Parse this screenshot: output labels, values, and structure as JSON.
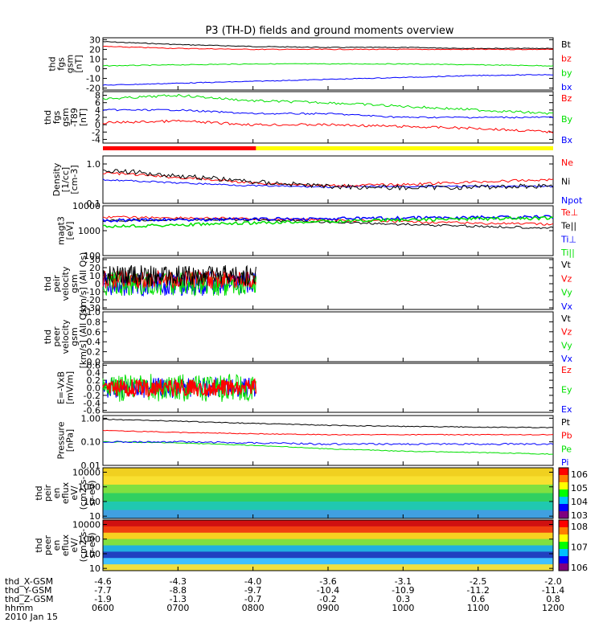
{
  "title": "P3 (TH-D) fields and ground moments overview",
  "colors": {
    "black": "#000000",
    "red": "#ff0000",
    "green": "#00e000",
    "blue": "#0000ff",
    "yellow": "#ffff00"
  },
  "panels": [
    {
      "id": "fgs",
      "ylabel": [
        "thd",
        "fgs",
        "gsm",
        "[nT]"
      ],
      "ticks": [
        "30",
        "20",
        "10",
        "0",
        "-10",
        "-20"
      ],
      "tickvals": [
        30,
        20,
        10,
        0,
        -10,
        -20
      ],
      "ylim": [
        -22,
        32
      ],
      "legend": [
        {
          "text": "Bt",
          "color": "#000000"
        },
        {
          "text": "bz",
          "color": "#ff0000"
        },
        {
          "text": "by",
          "color": "#00e000"
        },
        {
          "text": "bx",
          "color": "#0000ff"
        }
      ]
    },
    {
      "id": "t89",
      "ylabel": [
        "thd",
        "fgs",
        "gsm",
        "-T89",
        "[nT]"
      ],
      "ticks": [
        "8",
        "6",
        "4",
        "2",
        "0",
        "-2",
        "-4"
      ],
      "tickvals": [
        8,
        6,
        4,
        2,
        0,
        -2,
        -4
      ],
      "ylim": [
        -5,
        9
      ],
      "legend": [
        {
          "text": "Bz",
          "color": "#ff0000"
        },
        {
          "text": "By",
          "color": "#00e000"
        },
        {
          "text": "Bx",
          "color": "#0000ff"
        }
      ]
    },
    {
      "id": "density",
      "ylabel": [
        "Density",
        "[1/cc]",
        "[cm^-3]"
      ],
      "ticks": [
        "1.0",
        "0.1"
      ],
      "tickvals": [
        1.0,
        0.1
      ],
      "log": true,
      "ylim": [
        0.1,
        1.6
      ],
      "legend": [
        {
          "text": "Ne",
          "color": "#ff0000"
        },
        {
          "text": "Ni",
          "color": "#000000"
        },
        {
          "text": "Npot",
          "color": "#0000ff"
        }
      ]
    },
    {
      "id": "temp",
      "ylabel": [
        "magt3",
        "[eV]"
      ],
      "ticks": [
        "10000",
        "1000",
        "100"
      ],
      "tickvals": [
        10000,
        1000,
        100
      ],
      "log": true,
      "ylim": [
        100,
        10000
      ],
      "legend": [
        {
          "text": "Te⊥",
          "color": "#ff0000"
        },
        {
          "text": "Te||",
          "color": "#000000"
        },
        {
          "text": "Ti⊥",
          "color": "#0000ff"
        },
        {
          "text": "Ti||",
          "color": "#00e000"
        }
      ]
    },
    {
      "id": "peir",
      "ylabel": [
        "thd",
        "peir",
        "velocity",
        "gsm",
        "[km/s] (All Qs)"
      ],
      "ticks": [
        "30",
        "20",
        "10",
        "0",
        "-10",
        "-20",
        "-30"
      ],
      "tickvals": [
        30,
        20,
        10,
        0,
        -10,
        -20,
        -30
      ],
      "ylim": [
        -32,
        32
      ],
      "legend": [
        {
          "text": "Vt",
          "color": "#000000"
        },
        {
          "text": "Vz",
          "color": "#ff0000"
        },
        {
          "text": "Vy",
          "color": "#00e000"
        },
        {
          "text": "Vx",
          "color": "#0000ff"
        }
      ]
    },
    {
      "id": "peer",
      "ylabel": [
        "thd",
        "peer",
        "velocity",
        "gsm",
        "[km/s] (All Qs)"
      ],
      "ticks": [
        "1.0",
        "0.8",
        "0.6",
        "0.4",
        "0.2",
        "0.0"
      ],
      "tickvals": [
        1.0,
        0.8,
        0.6,
        0.4,
        0.2,
        0.0
      ],
      "ylim": [
        0,
        1
      ],
      "legend": [
        {
          "text": "Vt",
          "color": "#000000"
        },
        {
          "text": "Vz",
          "color": "#ff0000"
        },
        {
          "text": "Vy",
          "color": "#00e000"
        },
        {
          "text": "Vx",
          "color": "#0000ff"
        }
      ]
    },
    {
      "id": "exb",
      "ylabel": [
        "E=-VxB",
        "[mV/m]"
      ],
      "ticks": [
        "0.6",
        "0.4",
        "0.2",
        "0.0",
        "-0.2",
        "-0.4",
        "-0.6"
      ],
      "tickvals": [
        0.6,
        0.4,
        0.2,
        0.0,
        -0.2,
        -0.4,
        -0.6
      ],
      "ylim": [
        -0.65,
        0.65
      ],
      "legend": [
        {
          "text": "Ez",
          "color": "#ff0000"
        },
        {
          "text": "Ey",
          "color": "#00e000"
        },
        {
          "text": "Ex",
          "color": "#0000ff"
        }
      ]
    },
    {
      "id": "pressure",
      "ylabel": [
        "Pressure",
        "[nPa]"
      ],
      "ticks": [
        "1.00",
        "0.10",
        "0.01"
      ],
      "tickvals": [
        1.0,
        0.1,
        0.01
      ],
      "log": true,
      "ylim": [
        0.01,
        1.3
      ],
      "legend": [
        {
          "text": "Pt",
          "color": "#000000"
        },
        {
          "text": "Pb",
          "color": "#ff0000"
        },
        {
          "text": "Pe",
          "color": "#00e000"
        },
        {
          "text": "Pi",
          "color": "#0000ff"
        }
      ]
    },
    {
      "id": "peir_spec",
      "ylabel": [
        "thd",
        "peir",
        "en",
        "eflux",
        "eV/",
        "(cm^2-s-",
        "sr-eV)"
      ],
      "ticks": [
        "10000",
        "1000",
        "100",
        "10"
      ],
      "tickvals": [
        10000,
        1000,
        100,
        10
      ],
      "log": true,
      "ylim": [
        7,
        20000
      ],
      "colorbar": [
        "10^6",
        "10^5",
        "10^4",
        "10^3"
      ]
    },
    {
      "id": "peer_spec",
      "ylabel": [
        "thd",
        "peer",
        "en",
        "eflux",
        "eV/",
        "(cm^2-s-",
        "sr-eV)"
      ],
      "ticks": [
        "10000",
        "1000",
        "100",
        "10"
      ],
      "tickvals": [
        10000,
        1000,
        100,
        10
      ],
      "log": true,
      "ylim": [
        7,
        20000
      ],
      "colorbar": [
        "10^8",
        "10^7",
        "10^6"
      ]
    }
  ],
  "xaxis": {
    "rows": [
      {
        "label": "thd_X-GSM",
        "values": [
          "-4.6",
          "-4.3",
          "-4.0",
          "-3.6",
          "-3.1",
          "-2.5",
          "-2.0"
        ]
      },
      {
        "label": "thd_Y-GSM",
        "values": [
          "-7.7",
          "-8.8",
          "-9.7",
          "-10.4",
          "-10.9",
          "-11.2",
          "-11.4"
        ]
      },
      {
        "label": "thd_Z-GSM",
        "values": [
          "-1.9",
          "-1.3",
          "-0.7",
          "-0.2",
          "0.3",
          "0.6",
          "0.8"
        ]
      },
      {
        "label": "hhmm",
        "values": [
          "0600",
          "0700",
          "0800",
          "0900",
          "1000",
          "1100",
          "1200"
        ]
      }
    ],
    "date": "2010 Jan 15"
  },
  "chart_data": {
    "type": "line",
    "title": "P3 (TH-D) fields and ground moments overview",
    "x": [
      "0600",
      "0700",
      "0800",
      "0900",
      "1000",
      "1100",
      "1200"
    ],
    "series": [
      {
        "name": "Bt",
        "values": [
          28,
          25,
          23,
          22,
          22,
          21,
          21
        ]
      },
      {
        "name": "bz",
        "values": [
          23,
          21,
          20,
          20,
          20,
          20,
          20
        ]
      },
      {
        "name": "by",
        "values": [
          3,
          4,
          5,
          5,
          5,
          4,
          3
        ]
      },
      {
        "name": "bx",
        "values": [
          -17,
          -15,
          -13,
          -11,
          -9,
          -7,
          -6
        ]
      },
      {
        "name": "Bz",
        "values": [
          0.5,
          1,
          0,
          0,
          -0.5,
          -1,
          -2
        ]
      },
      {
        "name": "By",
        "values": [
          7,
          8,
          6.5,
          6,
          5,
          4,
          3
        ]
      },
      {
        "name": "Bx",
        "values": [
          4,
          4,
          3,
          3,
          2,
          2,
          2
        ]
      },
      {
        "name": "Ne",
        "values": [
          0.6,
          0.45,
          0.33,
          0.28,
          0.3,
          0.35,
          0.4
        ]
      },
      {
        "name": "Ni",
        "values": [
          0.7,
          0.5,
          0.35,
          0.27,
          0.25,
          0.26,
          0.28
        ]
      },
      {
        "name": "Npot",
        "values": [
          0.4,
          0.33,
          0.28,
          0.26,
          0.27,
          0.27,
          0.27
        ]
      },
      {
        "name": "Te⊥",
        "values": [
          3500,
          3300,
          3000,
          2700,
          2300,
          2000,
          1800
        ]
      },
      {
        "name": "Te||",
        "values": [
          2500,
          2800,
          2700,
          2200,
          1800,
          1500,
          1300
        ]
      },
      {
        "name": "Ti⊥",
        "values": [
          2500,
          2800,
          2900,
          3000,
          3200,
          3400,
          3500
        ]
      },
      {
        "name": "Ti||",
        "values": [
          1500,
          1700,
          2000,
          2400,
          2700,
          3000,
          3200
        ]
      },
      {
        "name": "Pt",
        "values": [
          0.9,
          0.75,
          0.6,
          0.5,
          0.45,
          0.42,
          0.4
        ]
      },
      {
        "name": "Pb",
        "values": [
          0.3,
          0.25,
          0.22,
          0.2,
          0.2,
          0.2,
          0.2
        ]
      },
      {
        "name": "Pe",
        "values": [
          0.1,
          0.09,
          0.07,
          0.05,
          0.04,
          0.035,
          0.03
        ]
      },
      {
        "name": "Pi",
        "values": [
          0.1,
          0.1,
          0.09,
          0.08,
          0.08,
          0.08,
          0.08
        ]
      }
    ]
  }
}
